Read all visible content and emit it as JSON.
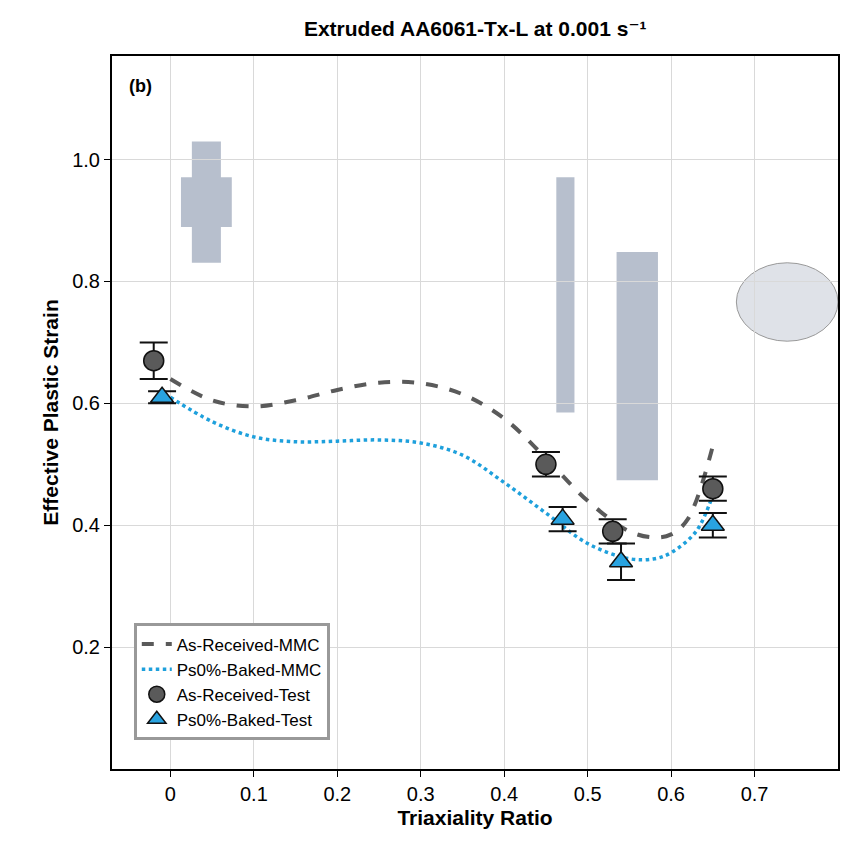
{
  "chart_data": {
    "type": "scatter",
    "title": "Extruded AA6061-Tx-L at 0.001 s⁻¹",
    "annotations": [
      "(b)"
    ],
    "x_label": "Triaxiality Ratio",
    "y_label": "Effective Plastic Strain",
    "xlim": [
      -0.07,
      0.8
    ],
    "ylim": [
      0,
      1.17
    ],
    "xticks": [
      0,
      0.1,
      0.2,
      0.3,
      0.4,
      0.5,
      0.6,
      0.7
    ],
    "yticks": [
      0.2,
      0.4,
      0.6,
      0.8,
      {
        "value": 1.0,
        "label": "1.0"
      }
    ],
    "grid": true,
    "legend": "lower left",
    "series": [
      {
        "name": "As-Received-MMC",
        "type": "line",
        "line_style": "dashed",
        "color": "#5a5a5a",
        "x": [
          0,
          0.05,
          0.1,
          0.15,
          0.2,
          0.25,
          0.3,
          0.35,
          0.4,
          0.45,
          0.5,
          0.55,
          0.58,
          0.6,
          0.62,
          0.65
        ],
        "values": [
          0.64,
          0.605,
          0.595,
          0.605,
          0.622,
          0.634,
          0.633,
          0.615,
          0.575,
          0.51,
          0.44,
          0.39,
          0.38,
          0.385,
          0.41,
          0.53
        ]
      },
      {
        "name": "Ps0%-Baked-MMC",
        "type": "line",
        "line_style": "dotted",
        "color": "#1ea0dc",
        "x": [
          0,
          0.05,
          0.1,
          0.15,
          0.2,
          0.25,
          0.3,
          0.35,
          0.4,
          0.45,
          0.5,
          0.55,
          0.58,
          0.6,
          0.63,
          0.65
        ],
        "values": [
          0.61,
          0.57,
          0.545,
          0.537,
          0.538,
          0.54,
          0.535,
          0.515,
          0.47,
          0.42,
          0.37,
          0.345,
          0.345,
          0.355,
          0.39,
          0.45
        ]
      },
      {
        "name": "As-Received-Test",
        "type": "scatter",
        "marker": "circle",
        "color": "#5a5a5a",
        "x": [
          -0.02,
          0.45,
          0.53,
          0.65
        ],
        "values": [
          0.67,
          0.5,
          0.39,
          0.46
        ],
        "error": [
          0.03,
          0.02,
          0.02,
          0.02
        ]
      },
      {
        "name": "Ps0%-Baked-Test",
        "type": "scatter",
        "marker": "triangle-up",
        "color": "#29a3e0",
        "x": [
          -0.01,
          0.47,
          0.54,
          0.65
        ],
        "values": [
          0.61,
          0.41,
          0.34,
          0.4
        ],
        "error": [
          0.01,
          0.02,
          0.03,
          0.02
        ]
      }
    ]
  }
}
